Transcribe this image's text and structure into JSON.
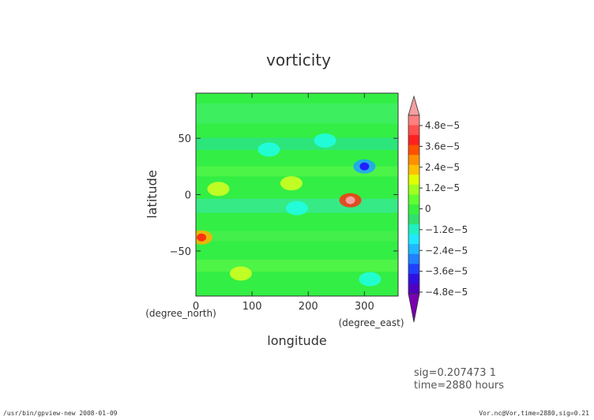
{
  "chart_data": {
    "type": "heatmap",
    "title": "vorticity",
    "xlabel": "longitude",
    "ylabel": "latitude",
    "x_unit": "(degree_east)",
    "y_unit": "(degree_north)",
    "xlim": [
      0,
      360
    ],
    "ylim": [
      -90,
      90
    ],
    "x_ticks": [
      0,
      100,
      200,
      300
    ],
    "x_tick_labels": [
      "0",
      "100",
      "200",
      "300"
    ],
    "y_ticks": [
      50,
      0,
      -50
    ],
    "y_tick_labels": [
      "50",
      "0",
      "−50"
    ],
    "colorbar": {
      "min": -4.8e-05,
      "max": 4.8e-05,
      "ticks": [
        4.8e-05,
        3.6e-05,
        2.4e-05,
        1.2e-05,
        0,
        -1.2e-05,
        -2.4e-05,
        -3.6e-05,
        -4.8e-05
      ],
      "tick_labels": [
        "4.8e−5",
        "3.6e−5",
        "2.4e−5",
        "1.2e−5",
        "0",
        "−1.2e−5",
        "−2.4e−5",
        "−3.6e−5",
        "−4.8e−5"
      ],
      "extend": "both",
      "upper_extension_color": "#f4a0a0",
      "lower_extension_color": "#7a00b0"
    },
    "features": [
      {
        "lon": 10,
        "lat": -38,
        "value": 3e-05
      },
      {
        "lon": 275,
        "lat": -5,
        "value": 3.6e-05
      },
      {
        "lon": 170,
        "lat": 10,
        "value": 1.2e-05
      },
      {
        "lon": 300,
        "lat": 25,
        "value": -2.4e-05
      },
      {
        "lon": 180,
        "lat": -12,
        "value": -1.2e-05
      },
      {
        "lon": 130,
        "lat": 40,
        "value": -1.2e-05
      },
      {
        "lon": 310,
        "lat": -75,
        "value": -1.2e-05
      },
      {
        "lon": 80,
        "lat": -70,
        "value": 1.2e-05
      },
      {
        "lon": 40,
        "lat": 5,
        "value": 1.2e-05
      },
      {
        "lon": 230,
        "lat": 48,
        "value": -1.2e-05
      }
    ]
  },
  "annotations": {
    "sig_line": "sig=0.207473 1",
    "time_line": "time=2880 hours"
  },
  "footer": {
    "left": "/usr/bin/gpview-new  2008-01-09",
    "right": "Vor.nc@Vor,time=2880,sig=0.21"
  }
}
